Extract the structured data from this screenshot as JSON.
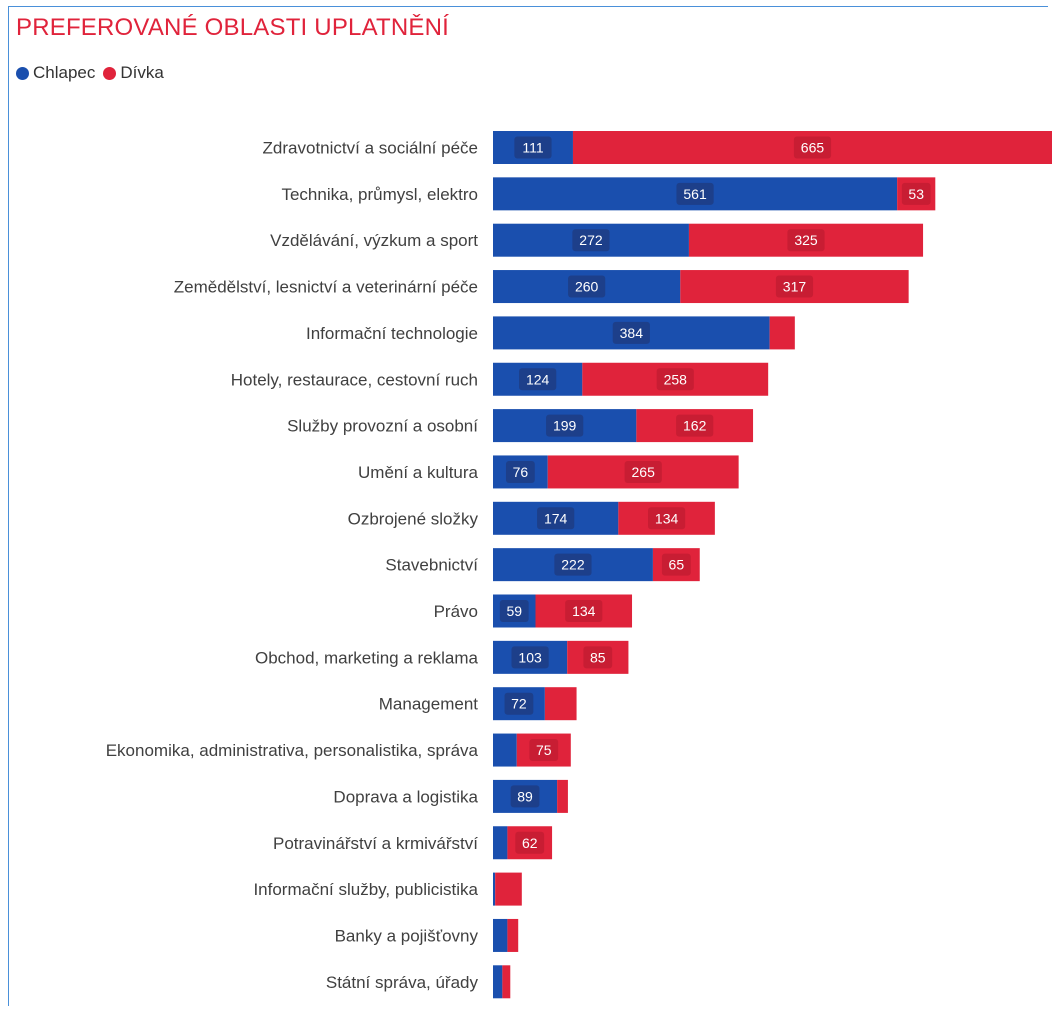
{
  "title": "PREFEROVANÉ OBLASTI UPLATNĚNÍ",
  "legend": [
    {
      "label": "Chlapec",
      "color": "#1a4fae"
    },
    {
      "label": "Dívka",
      "color": "#e0233b"
    }
  ],
  "chart_data": {
    "type": "bar",
    "orientation": "horizontal",
    "stacked": true,
    "title": "PREFEROVANÉ OBLASTI UPLATNĚNÍ",
    "xlim": [
      0,
      776
    ],
    "categories": [
      "Zdravotnictví a sociální péče",
      "Technika, průmysl, elektro",
      "Vzdělávání, výzkum a sport",
      "Zemědělství, lesnictví a veterinární péče",
      "Informační technologie",
      "Hotely, restaurace, cestovní ruch",
      "Služby provozní a osobní",
      "Umění a kultura",
      "Ozbrojené složky",
      "Stavebnictví",
      "Právo",
      "Obchod, marketing a reklama",
      "Management",
      "Ekonomika, administrativa, personalistika, správa",
      "Doprava a logistika",
      "Potravinářství a krmivářství",
      "Informační služby, publicistika",
      "Banky a pojišťovny",
      "Státní správa, úřady"
    ],
    "series": [
      {
        "name": "Chlapec",
        "color": "#1a4fae",
        "values": [
          111,
          561,
          272,
          260,
          384,
          124,
          199,
          76,
          174,
          222,
          59,
          103,
          72,
          33,
          89,
          20,
          3,
          20,
          13
        ],
        "labels": [
          "111",
          "561",
          "272",
          "260",
          "384",
          "124",
          "199",
          "76",
          "174",
          "222",
          "59",
          "103",
          "72",
          "",
          "89",
          "",
          "",
          "",
          ""
        ]
      },
      {
        "name": "Dívka",
        "color": "#e0233b",
        "values": [
          665,
          53,
          325,
          317,
          35,
          258,
          162,
          265,
          134,
          65,
          134,
          85,
          44,
          75,
          15,
          62,
          37,
          15,
          11
        ],
        "labels": [
          "665",
          "53",
          "325",
          "317",
          "",
          "258",
          "162",
          "265",
          "134",
          "65",
          "134",
          "85",
          "",
          "75",
          "",
          "62",
          "",
          "",
          ""
        ]
      }
    ]
  }
}
